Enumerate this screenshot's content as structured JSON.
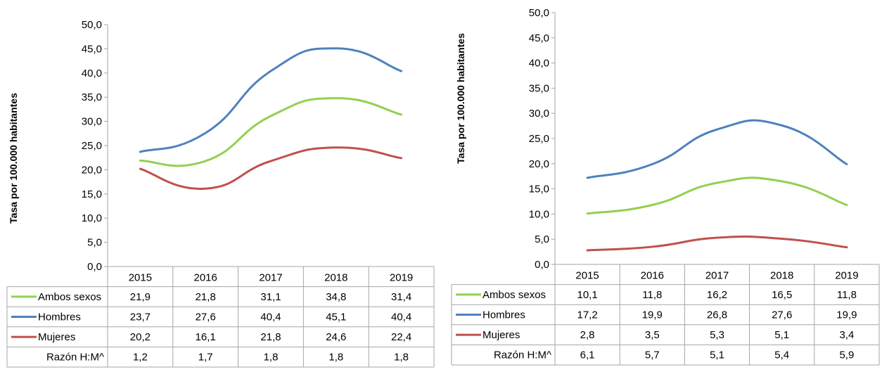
{
  "chart_data": [
    {
      "type": "line",
      "title": "",
      "ylabel": "Tasa por 100.000 habitantes",
      "ylim": [
        0,
        50
      ],
      "yticks": [
        "0,0",
        "5,0",
        "10,0",
        "15,0",
        "20,0",
        "25,0",
        "30,0",
        "35,0",
        "40,0",
        "45,0",
        "50,0"
      ],
      "categories": [
        "2015",
        "2016",
        "2017",
        "2018",
        "2019"
      ],
      "series": [
        {
          "name": "Ambos sexos",
          "color": "#92d050",
          "values": [
            21.9,
            21.8,
            31.1,
            34.8,
            31.4
          ],
          "labels": [
            "21,9",
            "21,8",
            "31,1",
            "34,8",
            "31,4"
          ]
        },
        {
          "name": "Hombres",
          "color": "#4f81bd",
          "values": [
            23.7,
            27.6,
            40.4,
            45.1,
            40.4
          ],
          "labels": [
            "23,7",
            "27,6",
            "40,4",
            "45,1",
            "40,4"
          ]
        },
        {
          "name": "Mujeres",
          "color": "#c0504d",
          "values": [
            20.2,
            16.1,
            21.8,
            24.6,
            22.4
          ],
          "labels": [
            "20,2",
            "16,1",
            "21,8",
            "24,6",
            "22,4"
          ]
        }
      ],
      "extra_row": {
        "name": "Razón H:M^",
        "labels": [
          "1,2",
          "1,7",
          "1,8",
          "1,8",
          "1,8"
        ]
      }
    },
    {
      "type": "line",
      "title": "",
      "ylabel": "Tasa por 100.000 habitantes",
      "ylim": [
        0,
        50
      ],
      "yticks": [
        "0,0",
        "5,0",
        "10,0",
        "15,0",
        "20,0",
        "25,0",
        "30,0",
        "35,0",
        "40,0",
        "45,0",
        "50,0"
      ],
      "categories": [
        "2015",
        "2016",
        "2017",
        "2018",
        "2019"
      ],
      "series": [
        {
          "name": "Ambos sexos",
          "color": "#92d050",
          "values": [
            10.1,
            11.8,
            16.2,
            16.5,
            11.8
          ],
          "labels": [
            "10,1",
            "11,8",
            "16,2",
            "16,5",
            "11,8"
          ]
        },
        {
          "name": "Hombres",
          "color": "#4f81bd",
          "values": [
            17.2,
            19.9,
            26.8,
            27.6,
            19.9
          ],
          "labels": [
            "17,2",
            "19,9",
            "26,8",
            "27,6",
            "19,9"
          ]
        },
        {
          "name": "Mujeres",
          "color": "#c0504d",
          "values": [
            2.8,
            3.5,
            5.3,
            5.1,
            3.4
          ],
          "labels": [
            "2,8",
            "3,5",
            "5,3",
            "5,1",
            "3,4"
          ]
        }
      ],
      "extra_row": {
        "name": "Razón H:M^",
        "labels": [
          "6,1",
          "5,7",
          "5,1",
          "5,4",
          "5,9"
        ]
      }
    }
  ]
}
